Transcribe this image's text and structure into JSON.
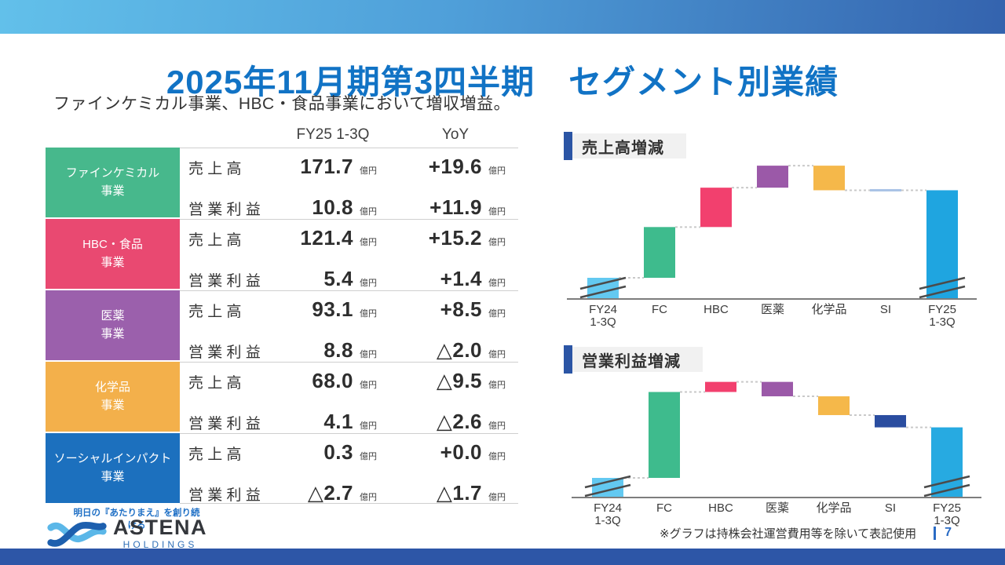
{
  "slide": {
    "title": "2025年11月期第3四半期　セグメント別業績",
    "subtitle": "ファインケミカル事業、HBC・食品事業において増収増益。",
    "footnote": "※グラフは持株会社運営費用等を除いて表記使用",
    "page_number": "7"
  },
  "brand": {
    "tagline": "明日の『あたりまえ』を創り続ける",
    "name": "ASTENA",
    "subname": "HOLDINGS",
    "accent_blue": "#2b55a5",
    "title_blue": "#1173c5"
  },
  "table": {
    "headers": {
      "fy": "FY25 1-3Q",
      "yoy": "YoY"
    },
    "row_labels": {
      "sales": "売 上 高",
      "profit": "営 業 利 益"
    },
    "unit": "億円",
    "segments": [
      {
        "name": "ファインケミカル",
        "line2": "事業",
        "color": "#47b88c",
        "sales": "171.7",
        "sales_yoy": "+19.6",
        "profit": "10.8",
        "profit_yoy": "+11.9"
      },
      {
        "name": "HBC・食品",
        "line2": "事業",
        "color": "#e94971",
        "sales": "121.4",
        "sales_yoy": "+15.2",
        "profit": "5.4",
        "profit_yoy": "+1.4"
      },
      {
        "name": "医薬",
        "line2": "事業",
        "color": "#9b60ac",
        "sales": "93.1",
        "sales_yoy": "+8.5",
        "profit": "8.8",
        "profit_yoy": "△2.0"
      },
      {
        "name": "化学品",
        "line2": "事業",
        "color": "#f3b04b",
        "sales": "68.0",
        "sales_yoy": "△9.5",
        "profit": "4.1",
        "profit_yoy": "△2.6"
      },
      {
        "name": "ソーシャルインパクト",
        "line2": "事業",
        "color": "#1c70be",
        "sales": "0.3",
        "sales_yoy": "+0.0",
        "profit": "△2.7",
        "profit_yoy": "△1.7"
      }
    ]
  },
  "chart_data": [
    {
      "type": "waterfall",
      "title": "売上高増減",
      "unit": "億円",
      "categories": [
        "FY24\n1-3Q",
        "FC",
        "HBC",
        "医薬",
        "化学品",
        "SI",
        "FY25\n1-3Q"
      ],
      "deltas": [
        null,
        19.6,
        15.2,
        8.5,
        -9.5,
        0.0,
        null
      ],
      "bar_colors": [
        "#63c9f1",
        "#3ebb8d",
        "#f2406e",
        "#9b59a8",
        "#f5b84a",
        "#a9c3e6",
        "#1fa5e0"
      ],
      "axis_break_on": [
        "FY24 1-3Q",
        "FY25 1-3Q"
      ],
      "legend_position": "none",
      "grid": false
    },
    {
      "type": "waterfall",
      "title": "営業利益増減",
      "unit": "億円",
      "categories": [
        "FY24\n1-3Q",
        "FC",
        "HBC",
        "医薬",
        "化学品",
        "SI",
        "FY25\n1-3Q"
      ],
      "deltas": [
        null,
        11.9,
        1.4,
        -2.0,
        -2.6,
        -1.7,
        null
      ],
      "bar_colors": [
        "#63c9f1",
        "#3ebb8d",
        "#f2406e",
        "#9b59a8",
        "#f5b84a",
        "#2a4da0",
        "#27aae1"
      ],
      "axis_break_on": [
        "FY24 1-3Q",
        "FY25 1-3Q"
      ],
      "legend_position": "none",
      "grid": false
    }
  ]
}
